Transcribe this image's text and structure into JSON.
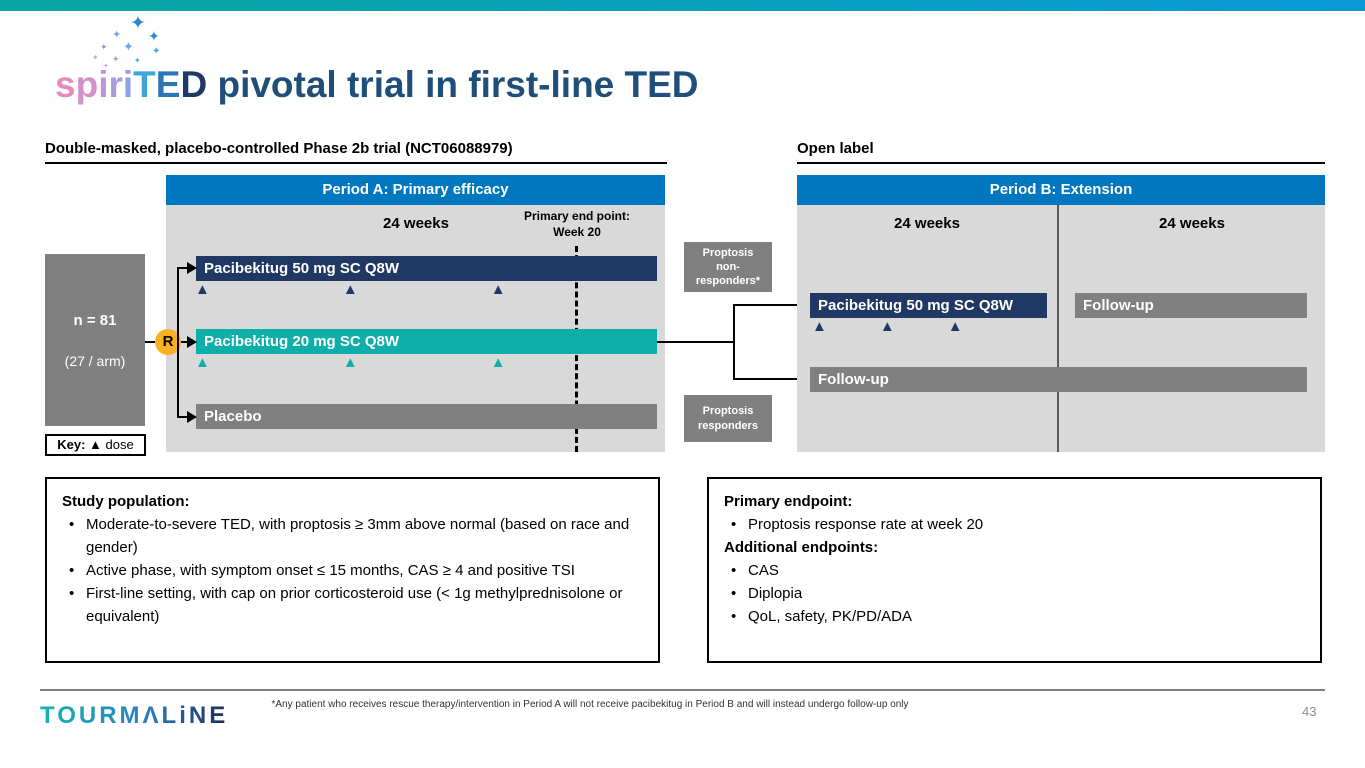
{
  "colors": {
    "topbar_left": "#0AA8A2",
    "topbar_right": "#0A9BD7",
    "header_blue": "#0077BE",
    "panel_gray": "#D9D9D9",
    "navy": "#1F3864",
    "teal": "#0FAFA9",
    "bar_gray": "#808080",
    "rand_yellow": "#F9B024",
    "title_navy": "#1F4E79"
  },
  "icons": {
    "sparkle": "✦"
  },
  "title": {
    "logo_letters": [
      {
        "ch": "s",
        "color": "#E58BBE"
      },
      {
        "ch": "p",
        "color": "#D490CB"
      },
      {
        "ch": "i",
        "color": "#BD95D5"
      },
      {
        "ch": "r",
        "color": "#A99BDC"
      },
      {
        "ch": "i",
        "color": "#8FA2E2"
      },
      {
        "ch": "T",
        "color": "#41A3DD"
      },
      {
        "ch": "E",
        "color": "#2E75B6"
      },
      {
        "ch": "D",
        "color": "#1F3864"
      }
    ],
    "rest": " pivotal trial in first-line TED"
  },
  "period_a": {
    "section_label": "Double-masked, placebo-controlled Phase 2b trial (NCT06088979)",
    "header": "Period A: Primary efficacy",
    "duration_label": "24 weeks",
    "endpoint_line1": "Primary end point:",
    "endpoint_line2": "Week 20",
    "randomization_label": "R",
    "n_label": "n = 81",
    "n_sublabel": "(27 / arm)",
    "key": {
      "prefix": "Key:",
      "symbol": "▲",
      "text": "dose"
    },
    "arms": [
      {
        "label": "Pacibekitug 50 mg SC Q8W",
        "dose_markers": [
          "▲",
          "▲",
          "▲"
        ]
      },
      {
        "label": "Pacibekitug 20 mg SC Q8W",
        "dose_markers": [
          "▲",
          "▲",
          "▲"
        ]
      },
      {
        "label": "Placebo",
        "dose_markers": []
      }
    ]
  },
  "transition": {
    "non_responders_lines": [
      "Proptosis",
      "non-",
      "responders*"
    ],
    "responders_lines": [
      "Proptosis",
      "responders"
    ]
  },
  "period_b": {
    "section_label": "Open label",
    "header": "Period B: Extension",
    "duration_left": "24 weeks",
    "duration_right": "24 weeks",
    "arm_pacibekitug": {
      "label": "Pacibekitug 50 mg SC Q8W",
      "dose_markers": [
        "▲",
        "▲",
        "▲"
      ]
    },
    "arm_followup_top": "Follow-up",
    "arm_followup_full": "Follow-up"
  },
  "study_population": {
    "title": "Study population:",
    "bullets": [
      "Moderate-to-severe TED, with proptosis ≥ 3mm above normal (based on race and gender)",
      "Active phase, with symptom onset ≤ 15 months, CAS ≥ 4 and positive TSI",
      "First-line setting, with cap on prior corticosteroid use (< 1g methylprednisolone or equivalent)"
    ]
  },
  "endpoints": {
    "primary_title": "Primary endpoint:",
    "primary_bullets": [
      "Proptosis response rate at week 20"
    ],
    "additional_title": "Additional endpoints:",
    "additional_bullets": [
      "CAS",
      "Diplopia",
      "QoL, safety, PK/PD/ADA"
    ]
  },
  "footer": {
    "logo_text": "TOURMΛLiNE",
    "footnote": "*Any patient who receives rescue therapy/intervention in Period A will not receive pacibekitug in Period B and will instead undergo follow-up only",
    "page_number": "43"
  }
}
